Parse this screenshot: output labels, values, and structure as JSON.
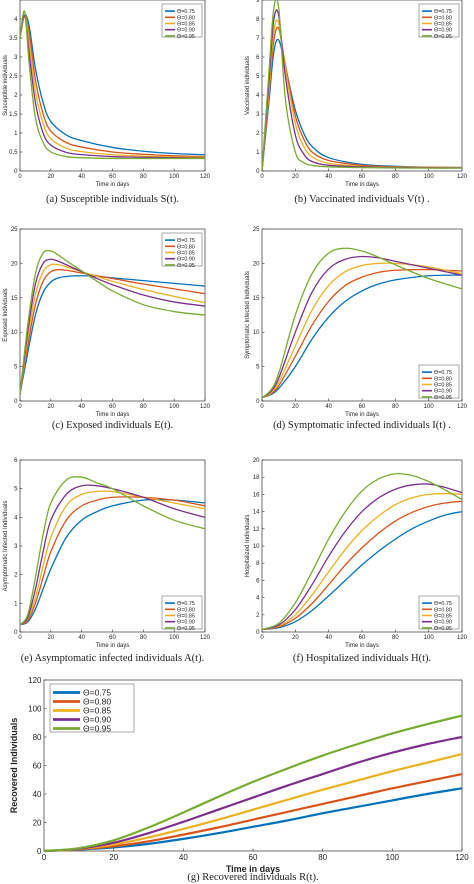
{
  "series_colors": [
    "#0072BD",
    "#D95319",
    "#EDB120",
    "#7E2F8E",
    "#77AC30"
  ],
  "chart_data": [
    {
      "type": "line",
      "caption": "(a) Susceptible individuals S(t).",
      "xlabel": "Time in days",
      "ylabel": "Susceptible individuals",
      "xlim": [
        0,
        120
      ],
      "ylim": [
        0,
        4.5
      ],
      "xticks": [
        0,
        20,
        40,
        60,
        80,
        100,
        120
      ],
      "yticks": [
        0,
        0.5,
        1,
        1.5,
        2,
        2.5,
        3,
        3.5,
        4
      ],
      "ytick_labels": [
        "0",
        "0.5",
        "1",
        "1.5",
        "2",
        "2.5",
        "3",
        "3.5",
        "4"
      ],
      "legend": "top-right",
      "x": [
        0,
        3,
        6,
        10,
        15,
        20,
        30,
        40,
        60,
        80,
        100,
        120
      ],
      "series": [
        {
          "name": "Θ=0.75",
          "values": [
            3.5,
            4.1,
            3.8,
            2.7,
            1.8,
            1.3,
            0.95,
            0.8,
            0.62,
            0.52,
            0.46,
            0.43
          ]
        },
        {
          "name": "Θ=0.80",
          "values": [
            3.5,
            4.1,
            3.6,
            2.4,
            1.5,
            1.05,
            0.75,
            0.63,
            0.5,
            0.44,
            0.4,
            0.38
          ]
        },
        {
          "name": "Θ=0.85",
          "values": [
            3.5,
            4.1,
            3.4,
            2.1,
            1.25,
            0.85,
            0.6,
            0.51,
            0.43,
            0.39,
            0.37,
            0.36
          ]
        },
        {
          "name": "Θ=0.90",
          "values": [
            3.5,
            4.1,
            3.1,
            1.8,
            1.0,
            0.68,
            0.49,
            0.43,
            0.38,
            0.36,
            0.35,
            0.34
          ]
        },
        {
          "name": "Θ=0.95",
          "values": [
            3.5,
            4.2,
            2.8,
            1.4,
            0.75,
            0.5,
            0.38,
            0.35,
            0.33,
            0.33,
            0.33,
            0.33
          ]
        }
      ]
    },
    {
      "type": "line",
      "caption": "(b) Vaccinated individuals V(t) .",
      "xlabel": "Time in days",
      "ylabel": "Vaccinated individuals",
      "xlim": [
        0,
        120
      ],
      "ylim": [
        0,
        9
      ],
      "xticks": [
        0,
        20,
        40,
        60,
        80,
        100,
        120
      ],
      "yticks": [
        0,
        1,
        2,
        3,
        4,
        5,
        6,
        7,
        8,
        9
      ],
      "ytick_labels": [
        "0",
        "1",
        "2",
        "3",
        "4",
        "5",
        "6",
        "7",
        "8",
        "9"
      ],
      "legend": "top-right",
      "x": [
        0,
        4,
        7,
        10,
        14,
        20,
        25,
        30,
        40,
        60,
        80,
        100,
        120
      ],
      "series": [
        {
          "name": "Θ=0.75",
          "values": [
            0,
            3.5,
            6.2,
            6.9,
            5.5,
            3.2,
            2.0,
            1.3,
            0.7,
            0.35,
            0.25,
            0.2,
            0.18
          ]
        },
        {
          "name": "Θ=0.80",
          "values": [
            0,
            3.8,
            6.8,
            7.5,
            5.6,
            2.9,
            1.7,
            1.0,
            0.55,
            0.3,
            0.22,
            0.2,
            0.18
          ]
        },
        {
          "name": "Θ=0.85",
          "values": [
            0,
            4.1,
            7.3,
            7.8,
            5.4,
            2.5,
            1.3,
            0.75,
            0.4,
            0.25,
            0.2,
            0.18,
            0.17
          ]
        },
        {
          "name": "Θ=0.90",
          "values": [
            0,
            4.5,
            7.9,
            8.2,
            5.0,
            1.9,
            0.9,
            0.5,
            0.3,
            0.22,
            0.18,
            0.17,
            0.16
          ]
        },
        {
          "name": "Θ=0.95",
          "values": [
            0,
            5.0,
            8.5,
            8.6,
            3.8,
            1.0,
            0.45,
            0.3,
            0.22,
            0.18,
            0.16,
            0.15,
            0.15
          ]
        }
      ]
    },
    {
      "type": "line",
      "caption": "(c) Exposed individuals E(t).",
      "xlabel": "Time in days",
      "ylabel": "Exposed Individuals",
      "xlim": [
        0,
        120
      ],
      "ylim": [
        0,
        25
      ],
      "xticks": [
        0,
        20,
        40,
        60,
        80,
        100,
        120
      ],
      "yticks": [
        0,
        5,
        10,
        15,
        20,
        25
      ],
      "ytick_labels": [
        "0",
        "5",
        "10",
        "15",
        "20",
        "25"
      ],
      "legend": "top-right",
      "x": [
        0,
        5,
        10,
        15,
        20,
        25,
        30,
        40,
        50,
        60,
        80,
        100,
        120
      ],
      "series": [
        {
          "name": "Θ=0.75",
          "values": [
            1,
            7,
            12.5,
            15.8,
            17.3,
            17.9,
            18.1,
            18.2,
            18.1,
            17.9,
            17.5,
            17.1,
            16.7
          ]
        },
        {
          "name": "Θ=0.80",
          "values": [
            1,
            8,
            14,
            17.4,
            18.8,
            19.1,
            19.0,
            18.6,
            18.2,
            17.8,
            17.0,
            16.3,
            15.6
          ]
        },
        {
          "name": "Θ=0.85",
          "values": [
            1,
            9,
            15.5,
            18.8,
            19.8,
            19.8,
            19.5,
            18.8,
            18.1,
            17.4,
            16.2,
            15.2,
            14.3
          ]
        },
        {
          "name": "Θ=0.90",
          "values": [
            1,
            10,
            17,
            20.0,
            20.6,
            20.3,
            19.8,
            18.8,
            17.8,
            16.9,
            15.4,
            14.4,
            13.8
          ]
        },
        {
          "name": "Θ=0.95",
          "values": [
            1,
            11,
            18.5,
            21.5,
            21.8,
            21.2,
            20.4,
            18.9,
            17.4,
            16.0,
            14.0,
            13.0,
            12.5
          ]
        }
      ]
    },
    {
      "type": "line",
      "caption": "(d) Symptomatic infected individuals I(t) .",
      "xlabel": "Time in days",
      "ylabel": "Symptomatic Infected Individuals",
      "xlim": [
        0,
        120
      ],
      "ylim": [
        0,
        25
      ],
      "xticks": [
        0,
        20,
        40,
        60,
        80,
        100,
        120
      ],
      "yticks": [
        0,
        5,
        10,
        15,
        20,
        25
      ],
      "ytick_labels": [
        "0",
        "5",
        "10",
        "15",
        "20",
        "25"
      ],
      "legend": "bottom-right",
      "x": [
        0,
        5,
        10,
        20,
        30,
        40,
        50,
        60,
        70,
        80,
        100,
        120
      ],
      "series": [
        {
          "name": "Θ=0.75",
          "values": [
            0.5,
            0.9,
            1.8,
            5.0,
            9.0,
            12.2,
            14.5,
            16.0,
            17.0,
            17.6,
            18.2,
            18.3
          ]
        },
        {
          "name": "Θ=0.80",
          "values": [
            0.5,
            1.0,
            2.2,
            6.5,
            11.0,
            14.5,
            16.8,
            18.0,
            18.7,
            19.0,
            19.1,
            18.9
          ]
        },
        {
          "name": "Θ=0.85",
          "values": [
            0.5,
            1.1,
            2.7,
            8.0,
            13.2,
            16.8,
            18.8,
            19.7,
            20.0,
            20.0,
            19.5,
            18.5
          ]
        },
        {
          "name": "Θ=0.90",
          "values": [
            0.5,
            1.3,
            3.3,
            10.0,
            15.8,
            19.2,
            20.6,
            21.0,
            20.8,
            20.3,
            19.3,
            18.3
          ]
        },
        {
          "name": "Θ=0.95",
          "values": [
            0.5,
            1.5,
            4.0,
            12.5,
            18.5,
            21.5,
            22.2,
            21.8,
            20.9,
            19.8,
            17.8,
            16.3
          ]
        }
      ]
    },
    {
      "type": "line",
      "caption": "(e) Asymptomatic infected individuals A(t).",
      "xlabel": "Time in days",
      "ylabel": "Asymptomatic Infected Individuals",
      "xlim": [
        0,
        120
      ],
      "ylim": [
        0,
        6
      ],
      "xticks": [
        0,
        20,
        40,
        60,
        80,
        100,
        120
      ],
      "yticks": [
        0,
        1,
        2,
        3,
        4,
        5,
        6
      ],
      "ytick_labels": [
        "0",
        "1",
        "2",
        "3",
        "4",
        "5",
        "6"
      ],
      "legend": "bottom-right",
      "x": [
        0,
        5,
        10,
        15,
        20,
        30,
        40,
        50,
        60,
        80,
        100,
        120
      ],
      "series": [
        {
          "name": "Θ=0.75",
          "values": [
            0.25,
            0.35,
            0.8,
            1.5,
            2.2,
            3.3,
            3.9,
            4.2,
            4.4,
            4.6,
            4.6,
            4.5
          ]
        },
        {
          "name": "Θ=0.80",
          "values": [
            0.25,
            0.4,
            1.0,
            1.9,
            2.8,
            3.9,
            4.4,
            4.6,
            4.7,
            4.7,
            4.6,
            4.4
          ]
        },
        {
          "name": "Θ=0.85",
          "values": [
            0.25,
            0.45,
            1.2,
            2.3,
            3.3,
            4.4,
            4.8,
            4.9,
            4.9,
            4.7,
            4.5,
            4.3
          ]
        },
        {
          "name": "Θ=0.90",
          "values": [
            0.25,
            0.5,
            1.5,
            2.8,
            3.9,
            4.8,
            5.1,
            5.1,
            5.0,
            4.7,
            4.3,
            4.0
          ]
        },
        {
          "name": "Θ=0.95",
          "values": [
            0.25,
            0.6,
            1.9,
            3.4,
            4.5,
            5.3,
            5.4,
            5.2,
            5.0,
            4.4,
            3.9,
            3.6
          ]
        }
      ]
    },
    {
      "type": "line",
      "caption": "(f) Hospitalized individuals H(t).",
      "xlabel": "Time in days",
      "ylabel": "Hospitalized Individuals",
      "xlim": [
        0,
        120
      ],
      "ylim": [
        0,
        20
      ],
      "xticks": [
        0,
        20,
        40,
        60,
        80,
        100,
        120
      ],
      "yticks": [
        0,
        2,
        4,
        6,
        8,
        10,
        12,
        14,
        16,
        18,
        20
      ],
      "ytick_labels": [
        "0",
        "2",
        "4",
        "6",
        "8",
        "10",
        "12",
        "14",
        "16",
        "18",
        "20"
      ],
      "legend": "bottom-right",
      "x": [
        0,
        10,
        20,
        30,
        40,
        50,
        60,
        70,
        80,
        90,
        100,
        110,
        120
      ],
      "series": [
        {
          "name": "Θ=0.75",
          "values": [
            0.3,
            0.5,
            1.2,
            2.5,
            4.2,
            6.0,
            7.8,
            9.4,
            10.8,
            12.0,
            12.9,
            13.6,
            14.0
          ]
        },
        {
          "name": "Θ=0.80",
          "values": [
            0.3,
            0.6,
            1.6,
            3.3,
            5.5,
            7.8,
            9.8,
            11.5,
            12.9,
            13.9,
            14.6,
            15.0,
            15.2
          ]
        },
        {
          "name": "Θ=0.85",
          "values": [
            0.3,
            0.7,
            2.0,
            4.3,
            7.0,
            9.6,
            11.8,
            13.5,
            14.8,
            15.6,
            16.0,
            16.1,
            16.0
          ]
        },
        {
          "name": "Θ=0.90",
          "values": [
            0.3,
            0.8,
            2.6,
            5.5,
            8.8,
            11.7,
            14.0,
            15.6,
            16.6,
            17.1,
            17.2,
            16.8,
            16.2
          ]
        },
        {
          "name": "Θ=0.95",
          "values": [
            0.3,
            1.0,
            3.4,
            7.0,
            10.8,
            14.0,
            16.4,
            17.8,
            18.4,
            18.2,
            17.5,
            16.5,
            15.4
          ]
        }
      ]
    },
    {
      "type": "line",
      "caption": "(g) Recovered individuals R(t).",
      "xlabel": "Time in days",
      "ylabel": "Recovered Individuals",
      "xlim": [
        0,
        120
      ],
      "ylim": [
        0,
        120
      ],
      "xticks": [
        0,
        20,
        40,
        60,
        80,
        100,
        120
      ],
      "yticks": [
        0,
        20,
        40,
        60,
        80,
        100,
        120
      ],
      "ytick_labels": [
        "0",
        "20",
        "40",
        "60",
        "80",
        "100",
        "120"
      ],
      "legend": "top-left",
      "x": [
        0,
        10,
        20,
        30,
        40,
        50,
        60,
        70,
        80,
        90,
        100,
        110,
        120
      ],
      "series": [
        {
          "name": "Θ=0.75",
          "values": [
            0,
            1,
            2.5,
            5,
            8.5,
            12.5,
            17,
            21.5,
            26.5,
            31,
            35.5,
            40,
            44
          ]
        },
        {
          "name": "Θ=0.80",
          "values": [
            0,
            1.2,
            3.3,
            6.8,
            11.5,
            16.5,
            22,
            27.5,
            33,
            38.5,
            44,
            49,
            54
          ]
        },
        {
          "name": "Θ=0.85",
          "values": [
            0,
            1.4,
            4.5,
            9.5,
            15.5,
            22,
            29,
            36,
            43,
            49.5,
            56,
            62,
            68
          ]
        },
        {
          "name": "Θ=0.90",
          "values": [
            0,
            1.6,
            5.8,
            12.5,
            20.5,
            29,
            37.5,
            46,
            54,
            62,
            69,
            75,
            80
          ]
        },
        {
          "name": "Θ=0.95",
          "values": [
            0,
            2,
            7.5,
            16.5,
            27,
            38,
            48.5,
            58,
            67,
            75,
            82.5,
            89,
            95
          ]
        }
      ]
    }
  ]
}
